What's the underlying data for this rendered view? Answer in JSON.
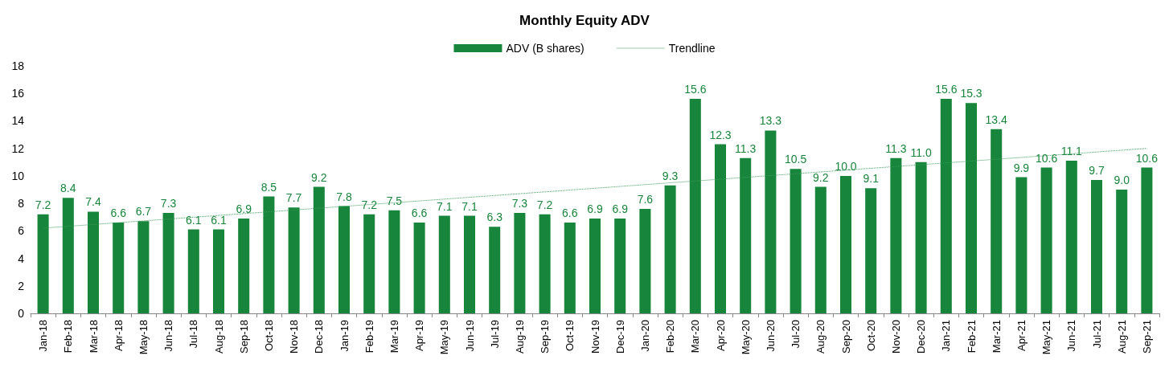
{
  "chart_data": {
    "type": "bar",
    "title": "Monthly Equity ADV",
    "categories": [
      "Jan-18",
      "Feb-18",
      "Mar-18",
      "Apr-18",
      "May-18",
      "Jun-18",
      "Jul-18",
      "Aug-18",
      "Sep-18",
      "Oct-18",
      "Nov-18",
      "Dec-18",
      "Jan-19",
      "Feb-19",
      "Mar-19",
      "Apr-19",
      "May-19",
      "Jun-19",
      "Jul-19",
      "Aug-19",
      "Sep-19",
      "Oct-19",
      "Nov-19",
      "Dec-19",
      "Jan-20",
      "Feb-20",
      "Mar-20",
      "Apr-20",
      "May-20",
      "Jun-20",
      "Jul-20",
      "Aug-20",
      "Sep-20",
      "Oct-20",
      "Nov-20",
      "Dec-20",
      "Jan-21",
      "Feb-21",
      "Mar-21",
      "Apr-21",
      "May-21",
      "Jun-21",
      "Jul-21",
      "Aug-21",
      "Sep-21"
    ],
    "series": [
      {
        "name": "ADV (B shares)",
        "color": "#17853b",
        "values": [
          7.2,
          8.4,
          7.4,
          6.6,
          6.7,
          7.3,
          6.1,
          6.1,
          6.9,
          8.5,
          7.7,
          9.2,
          7.8,
          7.2,
          7.5,
          6.6,
          7.1,
          7.1,
          6.3,
          7.3,
          7.2,
          6.6,
          6.9,
          6.9,
          7.6,
          9.3,
          15.6,
          12.3,
          11.3,
          13.3,
          10.5,
          9.2,
          10.0,
          9.1,
          11.3,
          11.0,
          15.6,
          15.3,
          13.4,
          9.9,
          10.6,
          11.1,
          9.7,
          9.0,
          10.6
        ],
        "value_labels": [
          "7.2",
          "8.4",
          "7.4",
          "6.6",
          "6.7",
          "7.3",
          "6.1",
          "6.1",
          "6.9",
          "8.5",
          "7.7",
          "9.2",
          "7.8",
          "7.2",
          "7.5",
          "6.6",
          "7.1",
          "7.1",
          "6.3",
          "7.3",
          "7.2",
          "6.6",
          "6.9",
          "6.9",
          "7.6",
          "9.3",
          "15.6",
          "12.3",
          "11.3",
          "13.3",
          "10.5",
          "9.2",
          "10.0",
          "9.1",
          "11.3",
          "11.0",
          "15.6",
          "15.3",
          "13.4",
          "9.9",
          "10.6",
          "11.1",
          "9.7",
          "9.0",
          "10.6"
        ]
      },
      {
        "name": "Trendline",
        "type": "line",
        "color": "#3a9a5a",
        "line_style": "dotted",
        "marker": "none",
        "x": [
          "Jan-18",
          "Sep-21"
        ],
        "values": [
          6.2,
          12.0
        ]
      }
    ],
    "ylim": [
      0,
      18
    ],
    "yticks": [
      0,
      2,
      4,
      6,
      8,
      10,
      12,
      14,
      16,
      18
    ],
    "grid": false,
    "legend": "top"
  }
}
